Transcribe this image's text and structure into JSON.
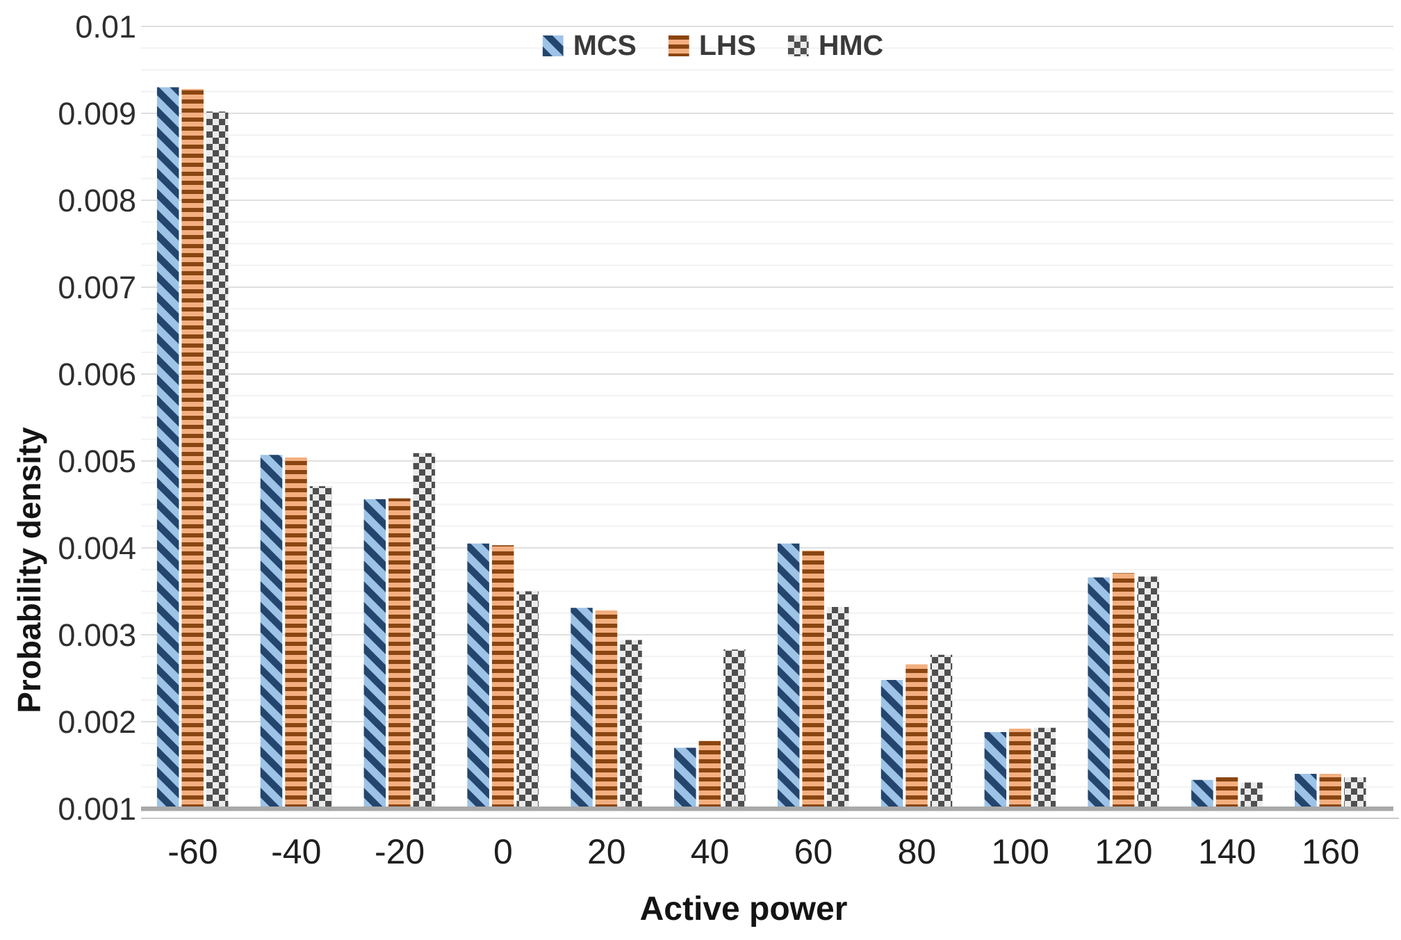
{
  "chart_data": {
    "type": "bar",
    "title": "",
    "xlabel": "Active power",
    "ylabel": "Probability density",
    "ylim": [
      0.001,
      0.01
    ],
    "grid": {
      "minor_step": 0.00025,
      "major_step": 0.001,
      "visible": true
    },
    "legend_position": "top-center",
    "categories": [
      "-60",
      "-40",
      "-20",
      "0",
      "20",
      "40",
      "60",
      "80",
      "100",
      "120",
      "140",
      "160"
    ],
    "series": [
      {
        "name": "MCS",
        "pattern": "diagonal-stripe",
        "bg_color": "#9DC3E6",
        "fg_color": "#24456E",
        "values": [
          0.0093,
          0.00507,
          0.00456,
          0.00405,
          0.00331,
          0.0017,
          0.00405,
          0.00248,
          0.00188,
          0.00366,
          0.00133,
          0.0014
        ]
      },
      {
        "name": "LHS",
        "pattern": "horizontal-stripe",
        "bg_color": "#F3AF7F",
        "fg_color": "#8A4511",
        "values": [
          0.00928,
          0.00504,
          0.00457,
          0.00403,
          0.00328,
          0.00178,
          0.00397,
          0.00266,
          0.00192,
          0.00371,
          0.00136,
          0.0014
        ]
      },
      {
        "name": "HMC",
        "pattern": "checker",
        "bg_color": "#EBEBEB",
        "fg_color": "#4F4F4F",
        "values": [
          0.00902,
          0.00471,
          0.00509,
          0.0035,
          0.00294,
          0.00283,
          0.00332,
          0.00277,
          0.00193,
          0.00367,
          0.0013,
          0.00136
        ]
      }
    ],
    "y_ticks": [
      {
        "label": "0.001",
        "value": 0.001
      },
      {
        "label": "0.002",
        "value": 0.002
      },
      {
        "label": "0.003",
        "value": 0.003
      },
      {
        "label": "0.004",
        "value": 0.004
      },
      {
        "label": "0.005",
        "value": 0.005
      },
      {
        "label": "0.006",
        "value": 0.006
      },
      {
        "label": "0.007",
        "value": 0.007
      },
      {
        "label": "0.008",
        "value": 0.008
      },
      {
        "label": "0.009",
        "value": 0.009
      },
      {
        "label": "0.01",
        "value": 0.01
      }
    ]
  },
  "colors": {
    "axis_line": "#A9A9A9",
    "axis_line_thin": "#C9C9C9",
    "grid_minor": "#F2F2F2",
    "grid_major": "#DFDFDF"
  }
}
